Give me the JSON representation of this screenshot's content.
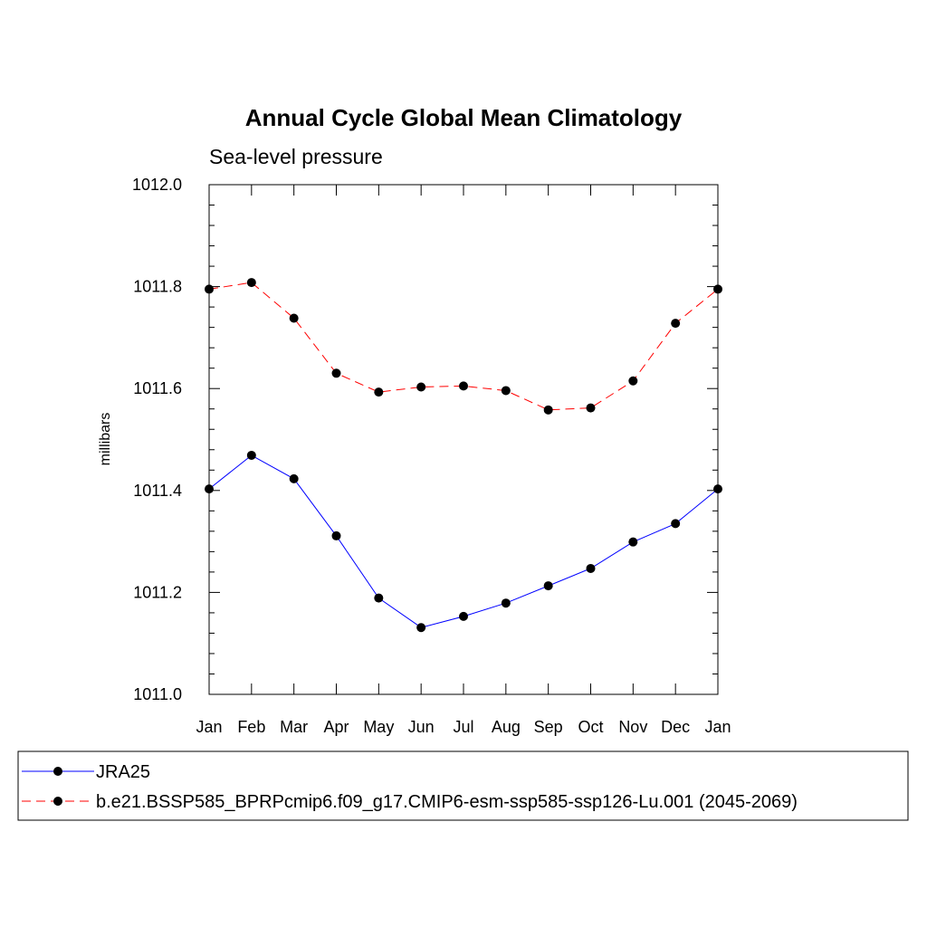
{
  "chart_data": {
    "type": "line",
    "title": "Annual Cycle Global Mean Climatology",
    "subtitle": "Sea-level pressure",
    "ylabel": "millibars",
    "xlabel": "",
    "ylim": [
      1011.0,
      1012.0
    ],
    "y_ticks": [
      "1011.0",
      "1011.2",
      "1011.4",
      "1011.6",
      "1011.8",
      "1012.0"
    ],
    "categories": [
      "Jan",
      "Feb",
      "Mar",
      "Apr",
      "May",
      "Jun",
      "Jul",
      "Aug",
      "Sep",
      "Oct",
      "Nov",
      "Dec",
      "Jan"
    ],
    "grid": false,
    "legend_position": "bottom",
    "series": [
      {
        "name": "JRA25",
        "color": "#0000ff",
        "line_style": "solid",
        "marker": "filled-circle",
        "values": [
          1011.403,
          1011.469,
          1011.423,
          1011.311,
          1011.189,
          1011.131,
          1011.153,
          1011.179,
          1011.213,
          1011.247,
          1011.299,
          1011.335,
          1011.403
        ]
      },
      {
        "name": "b.e21.BSSP585_BPRPcmip6.f09_g17.CMIP6-esm-ssp585-ssp126-Lu.001 (2045-2069)",
        "color": "#ff0000",
        "line_style": "dashed",
        "marker": "filled-circle",
        "values": [
          1011.795,
          1011.808,
          1011.738,
          1011.63,
          1011.593,
          1011.603,
          1011.605,
          1011.596,
          1011.558,
          1011.562,
          1011.615,
          1011.728,
          1011.795
        ]
      }
    ]
  }
}
